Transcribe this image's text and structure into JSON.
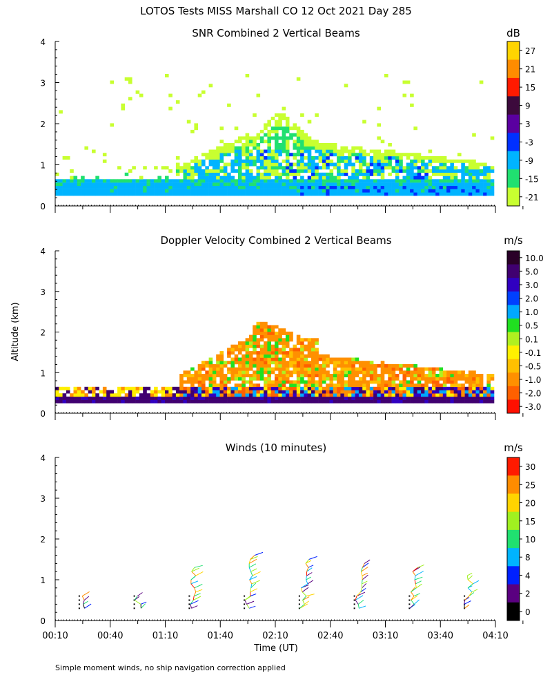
{
  "figure": {
    "title": "LOTOS Tests MISS Marshall CO  12 Oct 2021 Day 285",
    "footnote": "Simple moment winds, no ship navigation correction applied",
    "ylabel": "Altitude (km)",
    "xlabel": "Time (UT)"
  },
  "chart_data": [
    {
      "type": "heatmap",
      "title": "SNR Combined 2 Vertical Beams",
      "ylim": [
        0,
        4
      ],
      "yticks": [
        "0",
        "1",
        "2",
        "3",
        "4"
      ],
      "xlim": [
        "00:10",
        "04:10"
      ],
      "colorbar": {
        "unit": "dB",
        "labels": [
          "27",
          "21",
          "15",
          "9",
          "3",
          "-3",
          "-9",
          "-15",
          "-21"
        ],
        "colors": [
          "#ffd400",
          "#ff8c00",
          "#ff1a00",
          "#3c0a3c",
          "#5a00a0",
          "#0030ff",
          "#00b4ff",
          "#20e070",
          "#c8ff30"
        ]
      },
      "description_layers": [
        {
          "value": "-9",
          "alt_range_km": [
            0.25,
            0.6
          ],
          "time_range": [
            "00:10",
            "04:10"
          ]
        },
        {
          "value": "-15",
          "alt_range_km": [
            0.3,
            1.8
          ],
          "time_range": [
            "01:20",
            "04:10"
          ]
        },
        {
          "value": "-3",
          "alt_range_km": [
            0.3,
            1.2
          ],
          "time_range": [
            "01:50",
            "03:30"
          ]
        }
      ]
    },
    {
      "type": "heatmap",
      "title": "Doppler Velocity Combined 2 Vertical Beams",
      "ylim": [
        0,
        4
      ],
      "yticks": [
        "0",
        "1",
        "2",
        "3",
        "4"
      ],
      "xlim": [
        "00:10",
        "04:10"
      ],
      "colorbar": {
        "unit": "m/s",
        "labels": [
          "10.0",
          "5.0",
          "3.0",
          "2.0",
          "1.0",
          "0.5",
          "0.1",
          "-0.1",
          "-0.5",
          "-1.0",
          "-2.0",
          "-3.0"
        ],
        "colors": [
          "#2a0028",
          "#400070",
          "#3000c0",
          "#0040ff",
          "#00a8ff",
          "#20e020",
          "#b0f020",
          "#fff000",
          "#ffc000",
          "#ff9000",
          "#ff6000",
          "#ff1000"
        ]
      }
    },
    {
      "type": "scatter",
      "title": "Winds (10 minutes)",
      "ylim": [
        0,
        4
      ],
      "yticks": [
        "0",
        "1",
        "2",
        "3",
        "4"
      ],
      "x": [
        "00:40",
        "01:10",
        "01:40",
        "02:10",
        "02:40",
        "03:10",
        "03:40",
        "04:10"
      ],
      "xticks": [
        "00:10",
        "00:40",
        "01:10",
        "01:40",
        "02:10",
        "02:40",
        "03:10",
        "03:40",
        "04:10"
      ],
      "colorbar": {
        "unit": "m/s",
        "labels": [
          "30",
          "25",
          "20",
          "15",
          "10",
          "8",
          "4",
          "2",
          "0"
        ],
        "colors": [
          "#ff1a00",
          "#ff8c00",
          "#ffd400",
          "#a0f020",
          "#20e070",
          "#00b4ff",
          "#0020ff",
          "#5a0080",
          "#000000"
        ]
      },
      "profiles_times": [
        "00:25",
        "00:55",
        "01:25",
        "01:55",
        "02:25",
        "02:55",
        "03:25",
        "03:55"
      ]
    }
  ]
}
